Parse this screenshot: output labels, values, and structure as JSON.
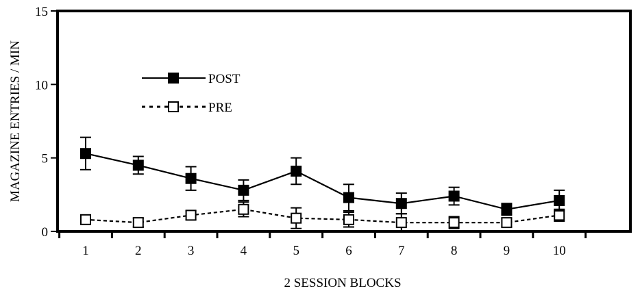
{
  "chart_data": {
    "type": "line",
    "title": "",
    "xlabel": "2 SESSION BLOCKS",
    "ylabel": "MAGAZINE ENTRIES / MIN",
    "x": [
      1,
      2,
      3,
      4,
      5,
      6,
      7,
      8,
      9,
      10
    ],
    "ylim": [
      0,
      15
    ],
    "yticks": [
      0,
      5,
      10,
      15
    ],
    "xtick_labels": [
      "1",
      "2",
      "3",
      "4",
      "5",
      "6",
      "7",
      "8",
      "9",
      "10"
    ],
    "legend_position": "upper-left",
    "grid": false,
    "series": [
      {
        "name": "POST",
        "marker": "filled-square",
        "line_style": "solid",
        "color": "#000000",
        "values": [
          5.3,
          4.5,
          3.6,
          2.8,
          4.1,
          2.3,
          1.9,
          2.4,
          1.5,
          2.1
        ],
        "error": [
          1.1,
          0.6,
          0.8,
          0.7,
          0.9,
          0.9,
          0.7,
          0.6,
          0.4,
          0.7
        ]
      },
      {
        "name": "PRE",
        "marker": "open-square",
        "line_style": "dotted",
        "color": "#000000",
        "values": [
          0.8,
          0.6,
          1.1,
          1.5,
          0.9,
          0.8,
          0.6,
          0.6,
          0.6,
          1.1
        ],
        "error": [
          0.3,
          0.3,
          0.3,
          0.5,
          0.7,
          0.5,
          0.6,
          0.4,
          0.3,
          0.4
        ]
      }
    ]
  }
}
